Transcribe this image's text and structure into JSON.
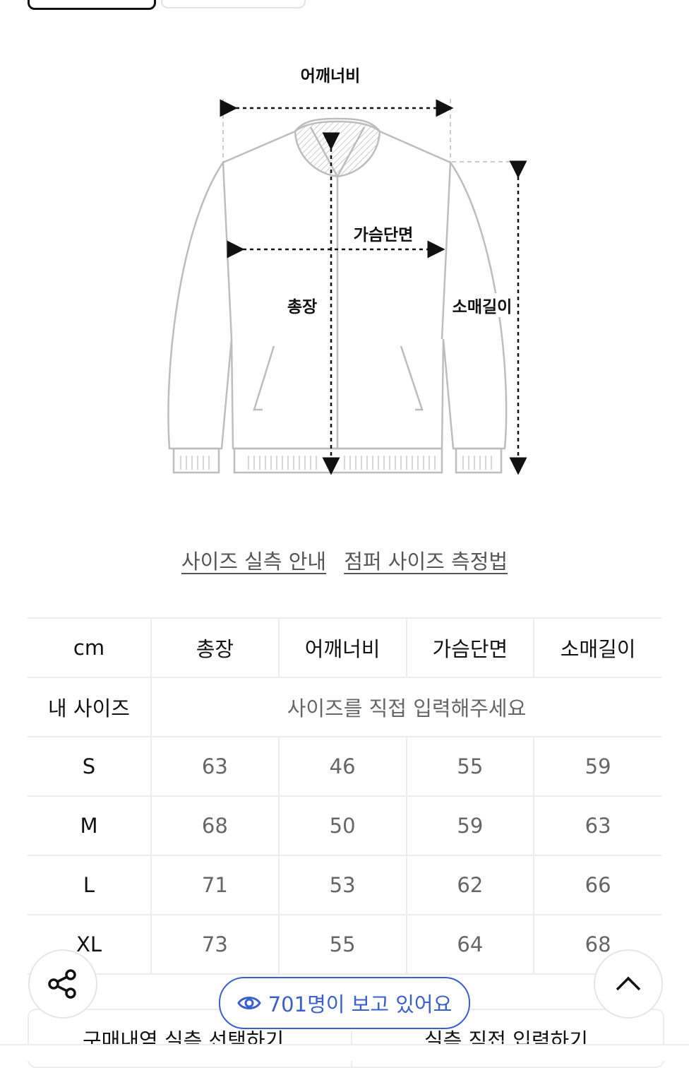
{
  "diagram": {
    "labels": {
      "shoulder": "어깨너비",
      "chest": "가슴단면",
      "length": "총장",
      "sleeve": "소매길이"
    }
  },
  "links": [
    "사이즈 실측 안내",
    "점퍼 사이즈 측정법"
  ],
  "table": {
    "headers": [
      "cm",
      "총장",
      "어깨너비",
      "가슴단면",
      "소매길이"
    ],
    "my_size": {
      "label": "내 사이즈",
      "placeholder": "사이즈를 직접 입력해주세요"
    },
    "rows": [
      {
        "size": "S",
        "values": [
          "63",
          "46",
          "55",
          "59"
        ]
      },
      {
        "size": "M",
        "values": [
          "68",
          "50",
          "59",
          "63"
        ]
      },
      {
        "size": "L",
        "values": [
          "71",
          "53",
          "62",
          "66"
        ]
      },
      {
        "size": "XL",
        "values": [
          "73",
          "55",
          "64",
          "68"
        ]
      }
    ]
  },
  "viewers": {
    "text": "701명이 보고 있어요",
    "icon": "eye-icon",
    "color": "#3a5fcf"
  },
  "bottom": {
    "left": "구매내역 실측 선택하기",
    "right": "실측 직접 입력하기"
  }
}
